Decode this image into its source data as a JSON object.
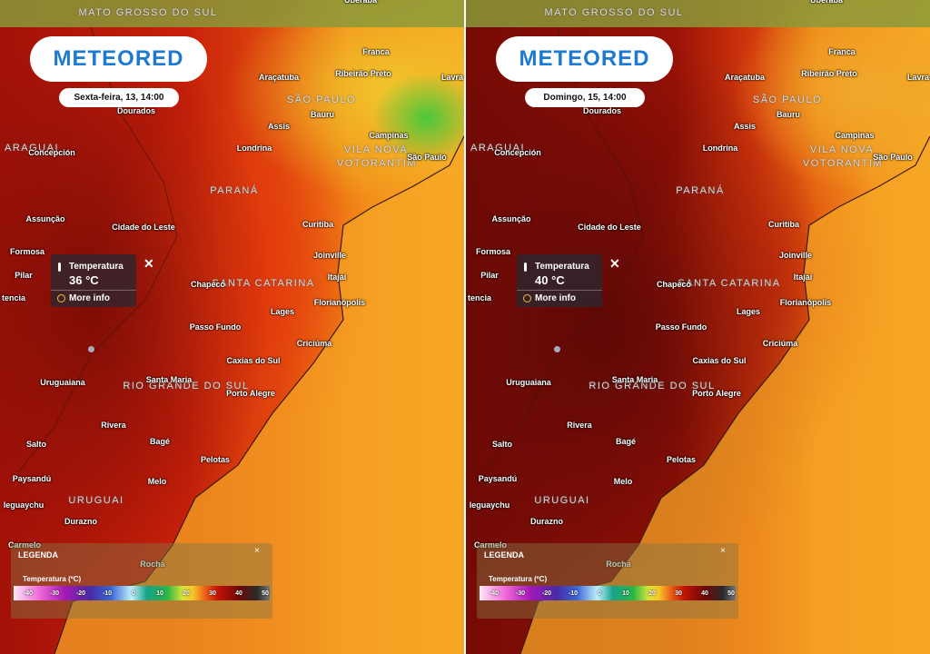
{
  "logo": "METEORED",
  "popup_label": "Temperatura",
  "popup_link": "More info",
  "legend": {
    "title": "LEGENDA",
    "subtitle": "Temperatura (ºC)",
    "ticks": [
      -40,
      -30,
      -20,
      -10,
      0,
      10,
      20,
      30,
      40,
      50
    ]
  },
  "panels": [
    {
      "date": "Sexta-feira, 13, 14:00",
      "value": "36 °C"
    },
    {
      "date": "Domingo, 15, 14:00",
      "value": "40 °C"
    }
  ],
  "regions": [
    "MATO GROSSO DO SUL",
    "SÃO PAULO",
    "ARAGUAI",
    "VILA NOVA",
    "VOTORANTIM",
    "PARANÁ",
    "SANTA CATARINA",
    "RIO GRANDE DO SUL",
    "URUGUAI"
  ],
  "places": [
    "Uberaba",
    "Franca",
    "Araçatuba",
    "Ribeirão Preto",
    "Lavra",
    "Dourados",
    "Bauru",
    "Assis",
    "Campinas",
    "Concepción",
    "Londrina",
    "São Paulo",
    "Assunção",
    "Cidade do Leste",
    "Curitiba",
    "Formosa",
    "Joinville",
    "Pilar",
    "Itajaí",
    "Chapecó",
    "Florianópolis",
    "Lages",
    "Passo Fundo",
    "Criciúma",
    "Caxias do Sul",
    "Santa Maria",
    "Uruguaiana",
    "Porto Alegre",
    "Rivera",
    "Salto",
    "Bagé",
    "Pelotas",
    "Paysandú",
    "Melo",
    "leguaychu",
    "Durazno",
    "Carmelo",
    "Rocha",
    "tencia"
  ]
}
